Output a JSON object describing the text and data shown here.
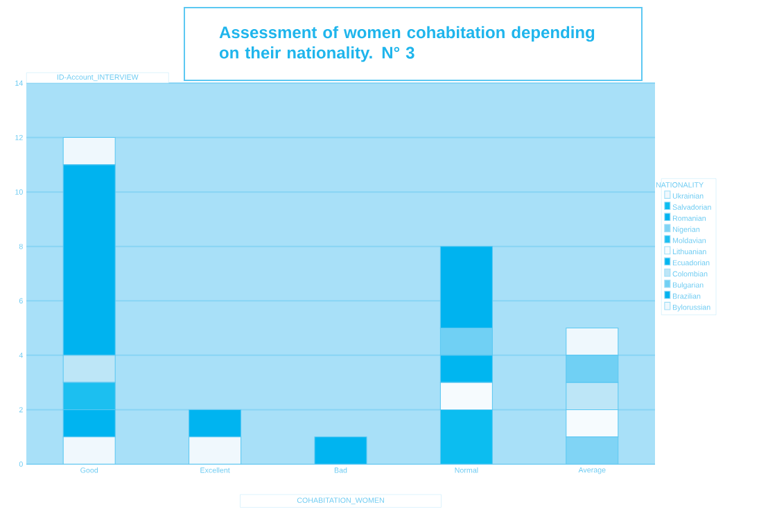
{
  "chart_data": {
    "type": "bar",
    "stacked": true,
    "title": "Assessment of women cohabitation depending on their nationality. N° 3",
    "xlabel": "COHABITATION_WOMEN",
    "ylabel": "ID-Account_INTERVIEW",
    "legend_title": "NATIONALITY",
    "categories": [
      "Good",
      "Excellent",
      "Bad",
      "Normal",
      "Average"
    ],
    "series": [
      {
        "name": "Ukrainian",
        "color": "#f0f8fd",
        "values": [
          1,
          1,
          null,
          null,
          null
        ]
      },
      {
        "name": "Salvadorian",
        "color": "#0cbdf0",
        "values": [
          null,
          null,
          null,
          2,
          null
        ]
      },
      {
        "name": "Romanian",
        "color": "#00b4f0",
        "values": [
          1,
          1,
          1,
          null,
          null
        ]
      },
      {
        "name": "Nigerian",
        "color": "#80d4f5",
        "values": [
          null,
          null,
          null,
          null,
          1
        ]
      },
      {
        "name": "Moldavian",
        "color": "#1cbff0",
        "values": [
          1,
          null,
          null,
          null,
          null
        ]
      },
      {
        "name": "Lithuanian",
        "color": "#f6fbfe",
        "values": [
          null,
          null,
          null,
          1,
          1
        ]
      },
      {
        "name": "Ecuadorian",
        "color": "#00b6f0",
        "values": [
          null,
          null,
          null,
          1,
          null
        ]
      },
      {
        "name": "Colombian",
        "color": "#bde6f7",
        "values": [
          1,
          null,
          null,
          null,
          1
        ]
      },
      {
        "name": "Bulgarian",
        "color": "#70d0f4",
        "values": [
          null,
          null,
          null,
          1,
          1
        ]
      },
      {
        "name": "Brazilian",
        "color": "#00b3ef",
        "values": [
          7,
          null,
          null,
          3,
          null
        ]
      },
      {
        "name": "Bylorussian",
        "color": "#eff8fd",
        "values": [
          1,
          null,
          null,
          null,
          1
        ]
      }
    ],
    "ylim": [
      0,
      14
    ],
    "yticks": [
      0,
      2,
      4,
      6,
      8,
      10,
      12,
      14
    ],
    "grid": "y",
    "legend": "right"
  }
}
